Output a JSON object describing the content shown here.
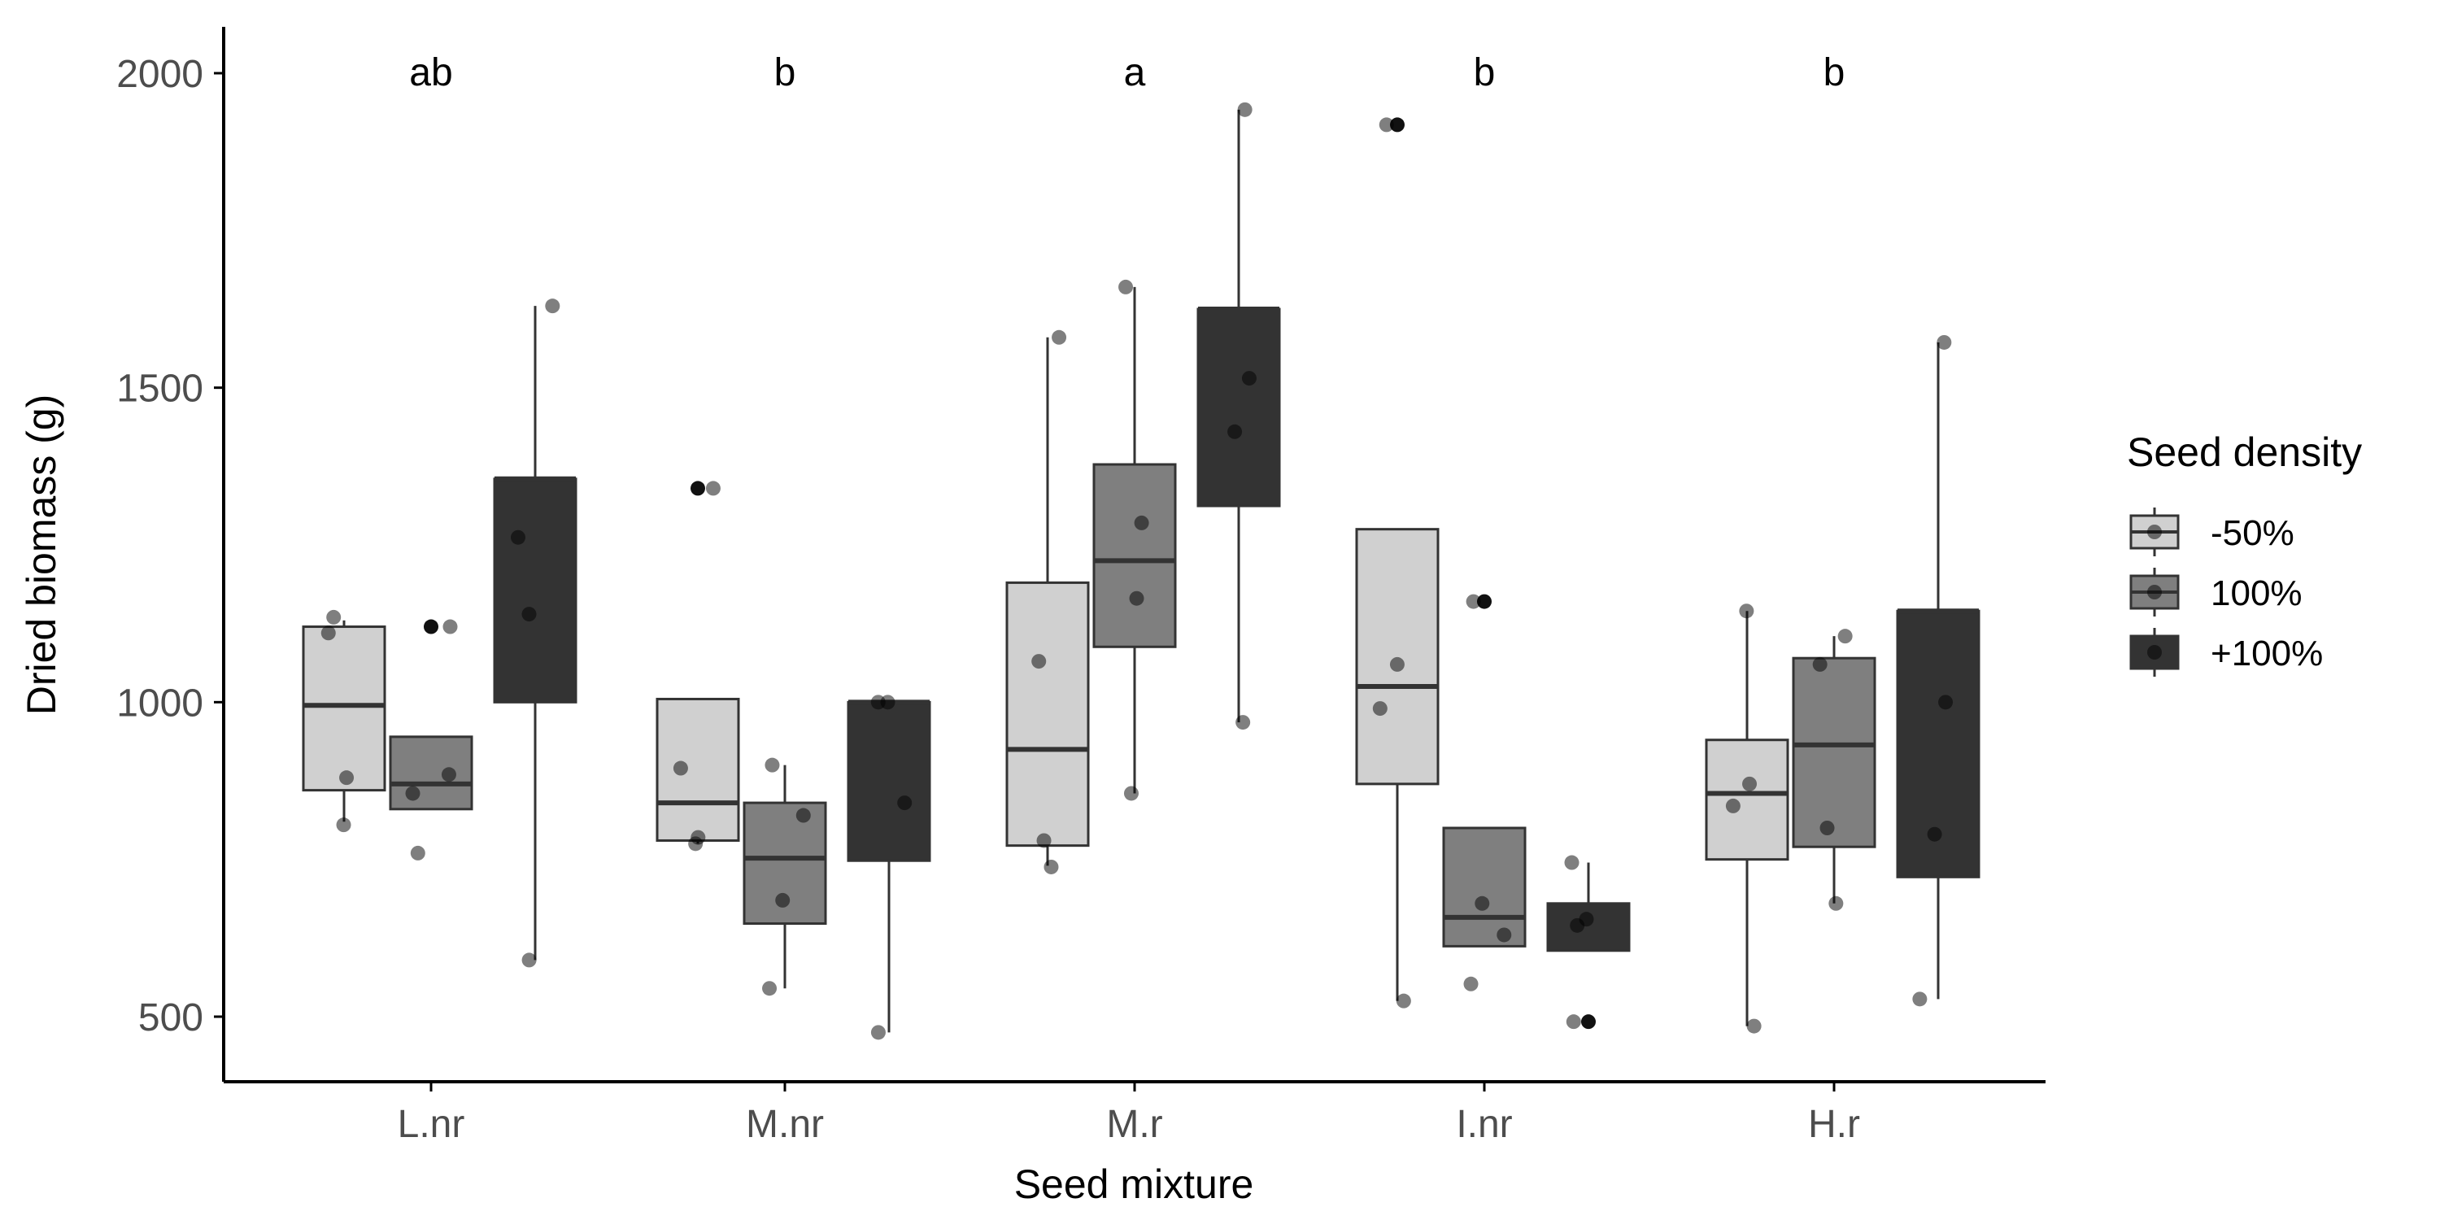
{
  "chart_data": {
    "type": "boxplot",
    "xlabel": "Seed mixture",
    "ylabel": "Dried biomass (g)",
    "ylim": [
      400,
      2070
    ],
    "yticks": [
      500,
      1000,
      1500,
      2000
    ],
    "grid": false,
    "legend_position": "right",
    "categories": [
      "L.nr",
      "M.nr",
      "M.r",
      "I.nr",
      "H.r"
    ],
    "group_letters": [
      "ab",
      "b",
      "a",
      "b",
      "b"
    ],
    "legend": {
      "title": "Seed density",
      "entries": [
        {
          "label": "-50%",
          "fill": "#d0d0d0"
        },
        {
          "label": "100%",
          "fill": "#7f7f7f"
        },
        {
          "label": "+100%",
          "fill": "#333333"
        }
      ]
    },
    "series": [
      {
        "name": "-50%",
        "fill": "#d0d0d0",
        "boxes": [
          {
            "whisker_low": 810,
            "q1": 860,
            "median": 995,
            "q3": 1120,
            "whisker_high": 1130,
            "outliers": []
          },
          {
            "whisker_low": 775,
            "q1": 780,
            "median": 840,
            "q3": 1005,
            "whisker_high": 1005,
            "outliers": [
              1340
            ]
          },
          {
            "whisker_low": 740,
            "q1": 772,
            "median": 925,
            "q3": 1190,
            "whisker_high": 1580,
            "outliers": []
          },
          {
            "whisker_low": 525,
            "q1": 870,
            "median": 1025,
            "q3": 1275,
            "whisker_high": 1275,
            "outliers": [
              1918
            ]
          },
          {
            "whisker_low": 485,
            "q1": 750,
            "median": 855,
            "q3": 940,
            "whisker_high": 1145,
            "outliers": []
          }
        ],
        "points": [
          [
            805,
            880,
            1110,
            1135
          ],
          [
            775,
            785,
            895,
            1340
          ],
          [
            738,
            780,
            1065,
            1580
          ],
          [
            525,
            990,
            1060,
            1918
          ],
          [
            485,
            835,
            870,
            1145
          ]
        ]
      },
      {
        "name": "100%",
        "fill": "#7f7f7f",
        "boxes": [
          {
            "whisker_low": 830,
            "q1": 830,
            "median": 870,
            "q3": 945,
            "whisker_high": 945,
            "outliers": [
              1120
            ]
          },
          {
            "whisker_low": 545,
            "q1": 648,
            "median": 752,
            "q3": 840,
            "whisker_high": 900,
            "outliers": []
          },
          {
            "whisker_low": 855,
            "q1": 1088,
            "median": 1225,
            "q3": 1378,
            "whisker_high": 1660,
            "outliers": []
          },
          {
            "whisker_low": 612,
            "q1": 612,
            "median": 658,
            "q3": 800,
            "whisker_high": 800,
            "outliers": [
              1160
            ]
          },
          {
            "whisker_low": 680,
            "q1": 770,
            "median": 932,
            "q3": 1070,
            "whisker_high": 1105,
            "outliers": []
          }
        ],
        "points": [
          [
            760,
            855,
            885,
            1120
          ],
          [
            545,
            685,
            820,
            900
          ],
          [
            855,
            1165,
            1285,
            1660
          ],
          [
            552,
            630,
            680,
            1160
          ],
          [
            680,
            800,
            1060,
            1105
          ]
        ]
      },
      {
        "name": "+100%",
        "fill": "#333333",
        "boxes": [
          {
            "whisker_low": 590,
            "q1": 1000,
            "median": 1355,
            "q3": 1355,
            "whisker_high": 1630,
            "outliers": []
          },
          {
            "whisker_low": 475,
            "q1": 748,
            "median": 1000,
            "q3": 1000,
            "whisker_high": 1000,
            "outliers": []
          },
          {
            "whisker_low": 968,
            "q1": 1312,
            "median": 1625,
            "q3": 1625,
            "whisker_high": 1942,
            "outliers": []
          },
          {
            "whisker_low": 605,
            "q1": 605,
            "median": 650,
            "q3": 680,
            "whisker_high": 745,
            "outliers": [
              492
            ]
          },
          {
            "whisker_low": 528,
            "q1": 722,
            "median": 1145,
            "q3": 1145,
            "whisker_high": 1572,
            "outliers": []
          }
        ],
        "points": [
          [
            590,
            1140,
            1262,
            1630
          ],
          [
            475,
            840,
            1000,
            1000
          ],
          [
            968,
            1430,
            1515,
            1942
          ],
          [
            492,
            645,
            655,
            745
          ],
          [
            528,
            790,
            1000,
            1572
          ]
        ]
      }
    ]
  }
}
